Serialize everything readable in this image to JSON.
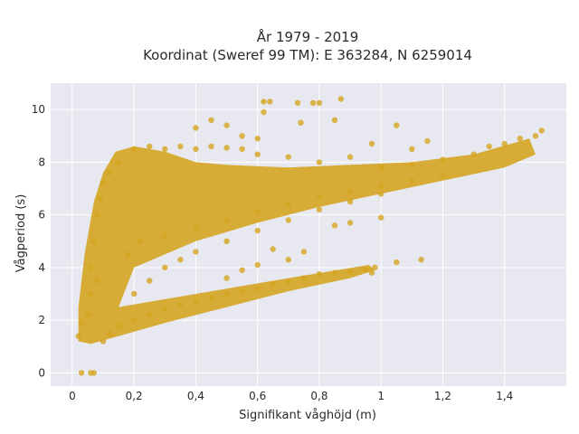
{
  "chart_data": {
    "type": "scatter",
    "title_line1": "År 1979 - 2019",
    "title_line2": "Koordinat (Sweref 99 TM): E 363284, N 6259014",
    "xlabel": "Signifikant våghöjd (m)",
    "ylabel": "Vågperiod (s)",
    "xlim": [
      -0.07,
      1.6
    ],
    "ylim": [
      -0.5,
      11.0
    ],
    "x_ticks": [
      0,
      0.2,
      0.4,
      0.6,
      0.8,
      1.0,
      1.2,
      1.4
    ],
    "x_tick_labels": [
      "0",
      "0,2",
      "0,4",
      "0,6",
      "0,8",
      "1",
      "1,2",
      "1,4"
    ],
    "y_ticks": [
      0,
      2,
      4,
      6,
      8,
      10
    ],
    "y_tick_labels": [
      "0",
      "2",
      "4",
      "6",
      "8",
      "10"
    ],
    "grid": true,
    "colors": {
      "points": "#d4a521",
      "plot_background": "#e8e8f0",
      "grid": "#ffffff"
    },
    "series": [
      {
        "points": [
          [
            0.03,
            0.0
          ],
          [
            0.06,
            0.0
          ],
          [
            0.07,
            0.0
          ],
          [
            0.02,
            1.4
          ],
          [
            0.03,
            1.9
          ],
          [
            0.05,
            2.2
          ],
          [
            0.06,
            3.0
          ],
          [
            0.08,
            3.5
          ],
          [
            0.1,
            1.2
          ],
          [
            0.12,
            1.5
          ],
          [
            0.15,
            1.8
          ],
          [
            0.2,
            2.0
          ],
          [
            0.25,
            2.2
          ],
          [
            0.3,
            2.4
          ],
          [
            0.35,
            2.6
          ],
          [
            0.4,
            2.7
          ],
          [
            0.45,
            2.85
          ],
          [
            0.5,
            3.0
          ],
          [
            0.55,
            3.1
          ],
          [
            0.6,
            3.2
          ],
          [
            0.65,
            3.35
          ],
          [
            0.7,
            3.45
          ],
          [
            0.75,
            3.6
          ],
          [
            0.8,
            3.75
          ],
          [
            0.85,
            3.8
          ],
          [
            0.9,
            3.85
          ],
          [
            0.95,
            3.9
          ],
          [
            0.98,
            4.0
          ],
          [
            0.06,
            4.0
          ],
          [
            0.07,
            5.0
          ],
          [
            0.08,
            6.0
          ],
          [
            0.09,
            6.6
          ],
          [
            0.1,
            7.2
          ],
          [
            0.12,
            7.6
          ],
          [
            0.15,
            8.0
          ],
          [
            0.2,
            8.5
          ],
          [
            0.25,
            8.6
          ],
          [
            0.3,
            8.5
          ],
          [
            0.35,
            8.6
          ],
          [
            0.4,
            8.5
          ],
          [
            0.45,
            8.6
          ],
          [
            0.5,
            8.55
          ],
          [
            0.55,
            8.5
          ],
          [
            0.6,
            8.3
          ],
          [
            0.7,
            8.2
          ],
          [
            0.8,
            8.0
          ],
          [
            0.9,
            8.2
          ],
          [
            1.0,
            7.8
          ],
          [
            1.1,
            7.9
          ],
          [
            1.2,
            8.1
          ],
          [
            1.3,
            8.3
          ],
          [
            1.35,
            8.6
          ],
          [
            1.4,
            8.7
          ],
          [
            1.45,
            8.9
          ],
          [
            1.5,
            9.0
          ],
          [
            1.52,
            9.2
          ],
          [
            0.18,
            4.5
          ],
          [
            0.22,
            5.0
          ],
          [
            0.3,
            5.2
          ],
          [
            0.4,
            5.5
          ],
          [
            0.5,
            5.8
          ],
          [
            0.6,
            6.1
          ],
          [
            0.7,
            6.4
          ],
          [
            0.8,
            6.7
          ],
          [
            0.9,
            6.9
          ],
          [
            1.0,
            7.1
          ],
          [
            1.1,
            7.3
          ],
          [
            1.2,
            7.5
          ],
          [
            0.2,
            3.0
          ],
          [
            0.25,
            3.5
          ],
          [
            0.3,
            4.0
          ],
          [
            0.35,
            4.3
          ],
          [
            0.4,
            4.6
          ],
          [
            0.5,
            5.0
          ],
          [
            0.6,
            5.4
          ],
          [
            0.7,
            5.8
          ],
          [
            0.8,
            6.2
          ],
          [
            0.9,
            6.5
          ],
          [
            1.0,
            6.8
          ],
          [
            0.62,
            10.3
          ],
          [
            0.64,
            10.3
          ],
          [
            0.73,
            10.25
          ],
          [
            0.78,
            10.25
          ],
          [
            0.8,
            10.25
          ],
          [
            0.87,
            10.4
          ],
          [
            0.62,
            9.9
          ],
          [
            0.74,
            9.5
          ],
          [
            0.85,
            9.6
          ],
          [
            1.05,
            9.4
          ],
          [
            0.55,
            9.0
          ],
          [
            0.45,
            9.6
          ],
          [
            0.4,
            9.3
          ],
          [
            0.5,
            9.4
          ],
          [
            0.6,
            8.9
          ],
          [
            0.97,
            8.7
          ],
          [
            1.1,
            8.5
          ],
          [
            1.15,
            8.8
          ],
          [
            1.05,
            4.2
          ],
          [
            1.13,
            4.3
          ],
          [
            0.97,
            3.8
          ],
          [
            0.9,
            5.7
          ],
          [
            1.0,
            5.9
          ],
          [
            0.85,
            5.6
          ],
          [
            0.65,
            4.7
          ],
          [
            0.7,
            4.3
          ],
          [
            0.75,
            4.6
          ],
          [
            0.6,
            4.1
          ],
          [
            0.55,
            3.9
          ],
          [
            0.5,
            3.6
          ]
        ]
      }
    ]
  }
}
